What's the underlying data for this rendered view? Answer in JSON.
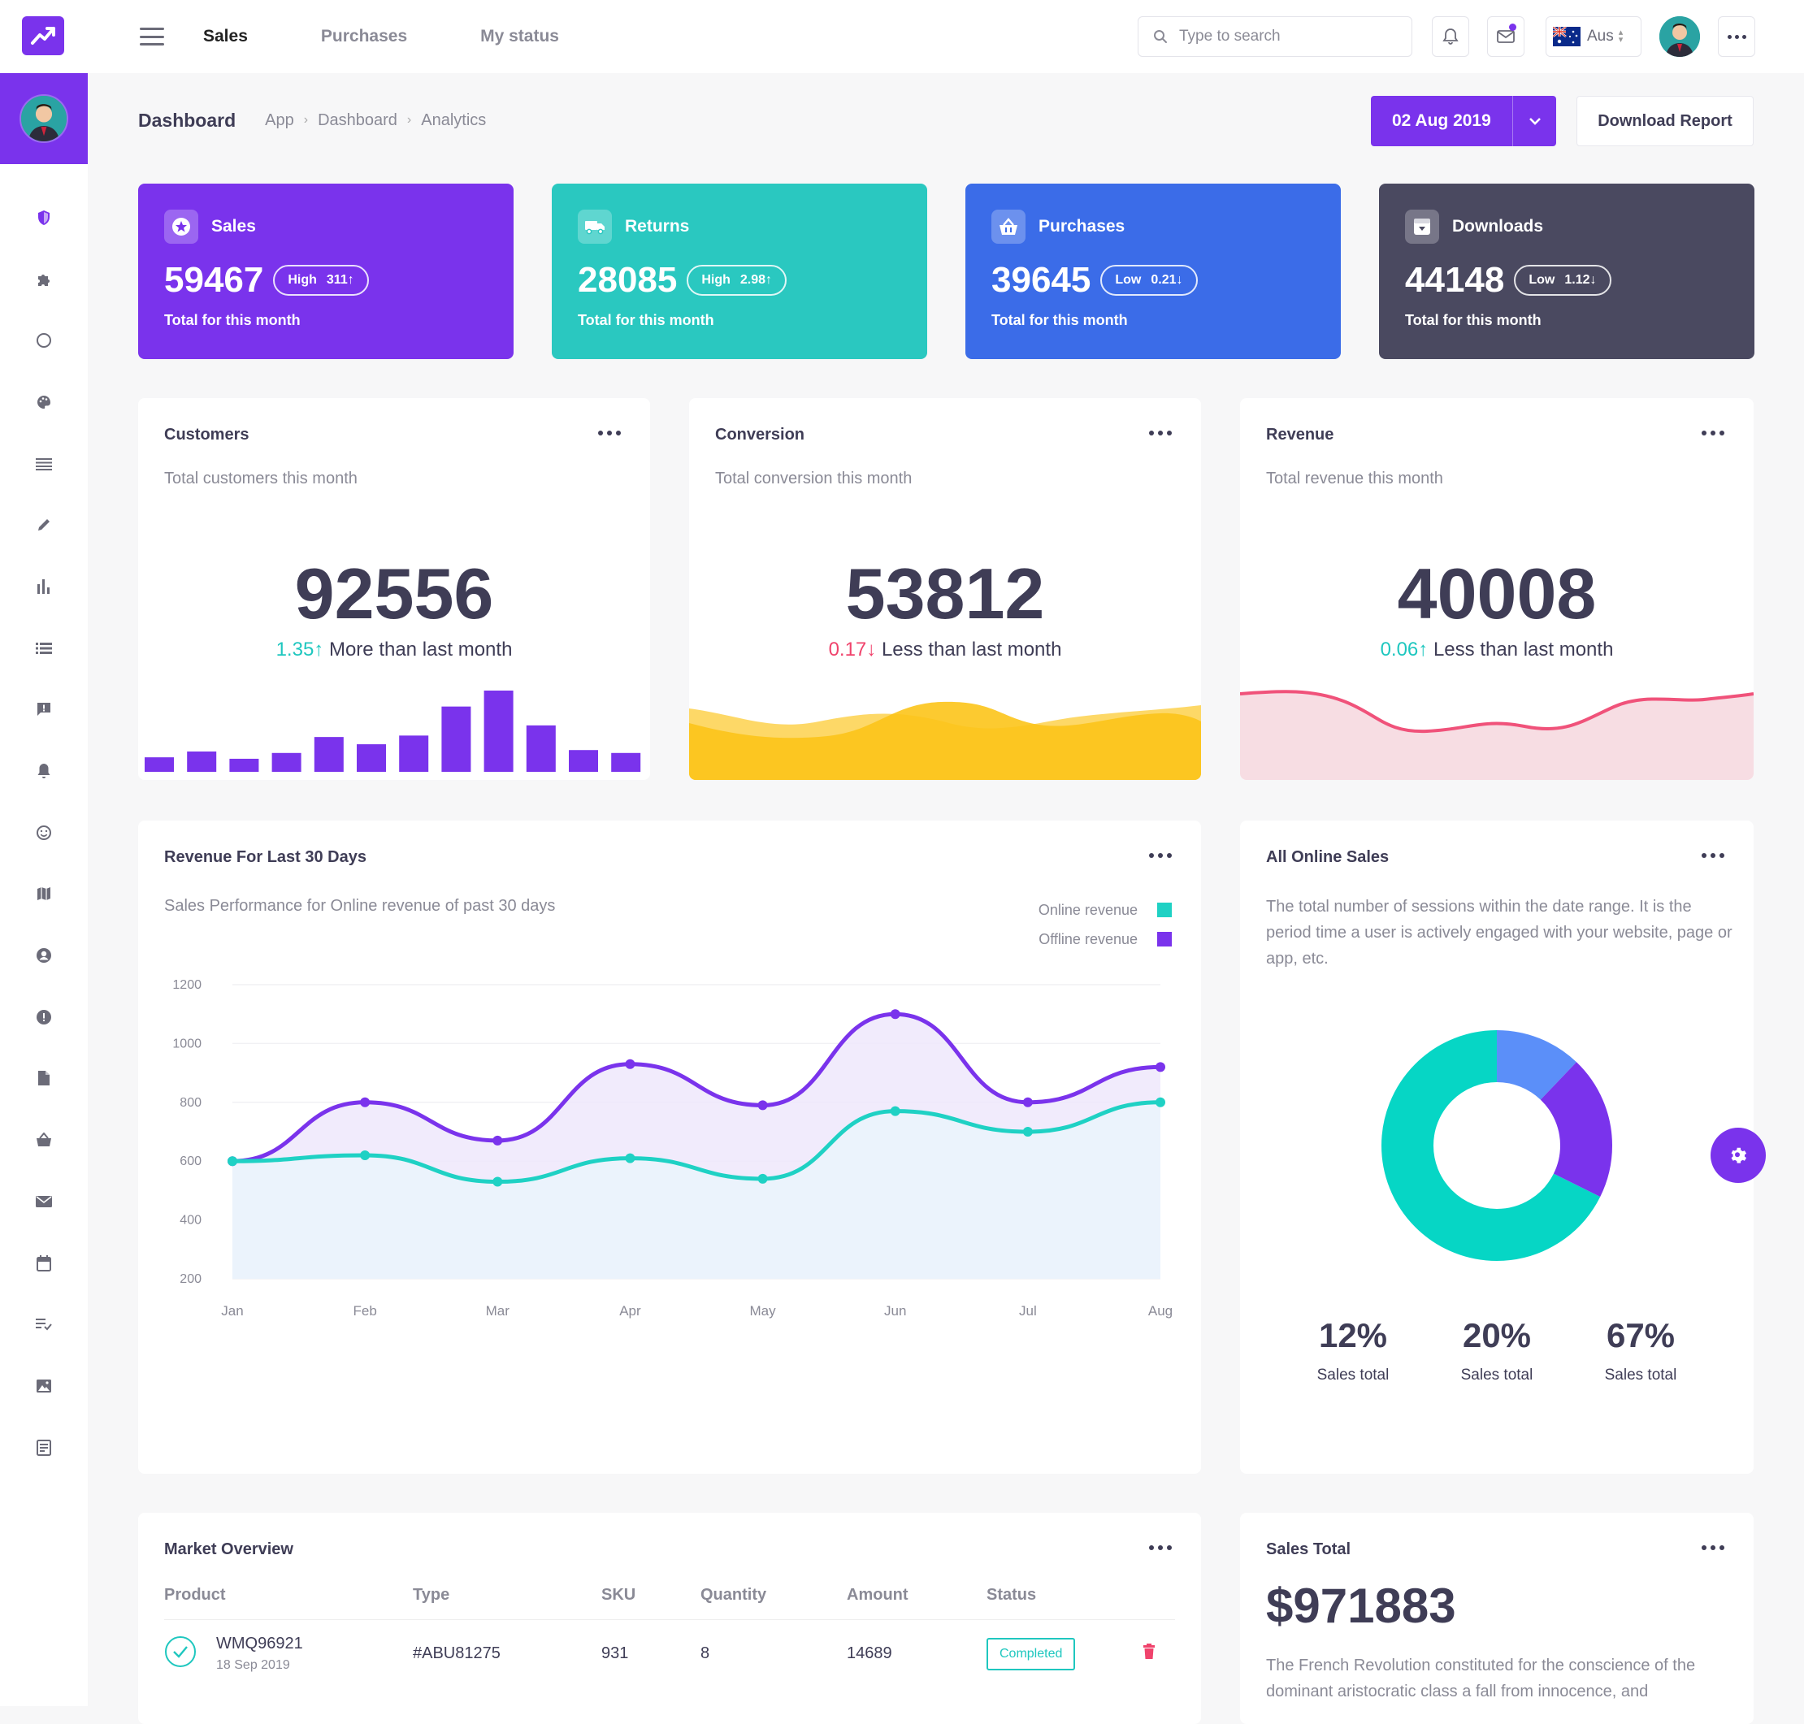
{
  "topbar": {
    "nav": [
      "Sales",
      "Purchases",
      "My status"
    ],
    "active_nav": "Sales",
    "search_placeholder": "Type to search",
    "country": "Aus"
  },
  "breadcrumb": {
    "title": "Dashboard",
    "items": [
      "App",
      "Dashboard",
      "Analytics"
    ]
  },
  "date_button": "02 Aug 2019",
  "download_button": "Download Report",
  "stats": [
    {
      "title": "Sales",
      "value": "59467",
      "badge_label": "High",
      "badge_value": "311",
      "trend": "up",
      "sub": "Total for this month",
      "color": "#7a33ec",
      "icon": "star-icon"
    },
    {
      "title": "Returns",
      "value": "28085",
      "badge_label": "High",
      "badge_value": "2.98",
      "trend": "up",
      "sub": "Total for this month",
      "color": "#2ac8c0",
      "icon": "truck-icon"
    },
    {
      "title": "Purchases",
      "value": "39645",
      "badge_label": "Low",
      "badge_value": "0.21",
      "trend": "down",
      "sub": "Total for this month",
      "color": "#3b6ce8",
      "icon": "basket-icon"
    },
    {
      "title": "Downloads",
      "value": "44148",
      "badge_label": "Low",
      "badge_value": "1.12",
      "trend": "down",
      "sub": "Total for this month",
      "color": "#4a4960",
      "icon": "download-box-icon"
    }
  ],
  "customers": {
    "title": "Customers",
    "subtitle": "Total customers this month",
    "value": "92556",
    "delta": "1.35",
    "trend": "up",
    "compare": "More than last month",
    "bars": [
      10,
      14,
      9,
      13,
      24,
      19,
      25,
      45,
      56,
      32,
      15,
      13
    ]
  },
  "conversion": {
    "title": "Conversion",
    "subtitle": "Total conversion this month",
    "value": "53812",
    "delta": "0.17",
    "trend": "down",
    "compare": "Less than last month"
  },
  "revenue": {
    "title": "Revenue",
    "subtitle": "Total revenue this month",
    "value": "40008",
    "delta": "0.06",
    "trend": "up",
    "compare": "Less than last month"
  },
  "revenue30": {
    "title": "Revenue For Last 30 Days",
    "subtitle": "Sales Performance for Online revenue of past 30 days",
    "legend": [
      "Online revenue",
      "Offline revenue"
    ]
  },
  "chart_data": {
    "type": "line",
    "categories": [
      "Jan",
      "Feb",
      "Mar",
      "Apr",
      "May",
      "Jun",
      "Jul",
      "Aug"
    ],
    "series": [
      {
        "name": "Online revenue",
        "values": [
          600,
          620,
          530,
          610,
          540,
          770,
          700,
          800
        ],
        "color": "#1fd1c4"
      },
      {
        "name": "Offline revenue",
        "values": [
          600,
          800,
          670,
          930,
          790,
          1100,
          800,
          920
        ],
        "color": "#7a33ec"
      }
    ],
    "yticks": [
      1200,
      1000,
      800,
      600,
      400,
      200
    ],
    "ylim": [
      200,
      1200
    ]
  },
  "online_sales": {
    "title": "All Online Sales",
    "description": "The total number of sessions within the date range. It is the period time a user is actively engaged with your website, page or app, etc.",
    "donut": [
      {
        "label": "Sales total",
        "value": 12,
        "display": "12%",
        "color": "#5b8ff9"
      },
      {
        "label": "Sales total",
        "value": 20,
        "display": "20%",
        "color": "#7a33ec"
      },
      {
        "label": "Sales total",
        "value": 67,
        "display": "67%",
        "color": "#06d6c5"
      }
    ]
  },
  "market": {
    "title": "Market Overview",
    "columns": [
      "Product",
      "Type",
      "SKU",
      "Quantity",
      "Amount",
      "Status"
    ],
    "rows": [
      {
        "product": "WMQ96921",
        "date": "18 Sep 2019",
        "type": "#ABU81275",
        "sku": "931",
        "quantity": "8",
        "amount": "14689",
        "status": "Completed"
      }
    ]
  },
  "sales_total": {
    "title": "Sales Total",
    "value": "$971883",
    "text": "The French Revolution constituted for the conscience of the dominant aristocratic class a fall from innocence, and"
  }
}
